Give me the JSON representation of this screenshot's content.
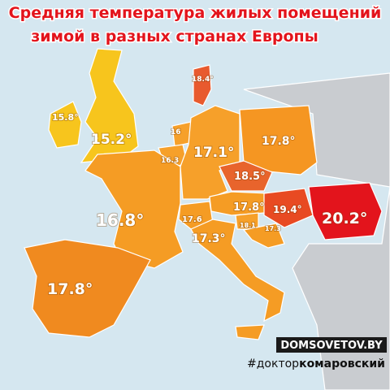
{
  "header": {
    "title_line_1": "Средняя температура жилых помещений",
    "title_line_2": "зимой в разных странах Европы"
  },
  "regions": [
    {
      "label": "15.8°"
    },
    {
      "label": "15.2°"
    },
    {
      "label": "18.4°"
    },
    {
      "label": "16"
    },
    {
      "label": "16.3"
    },
    {
      "label": "17.1°"
    },
    {
      "label": "17.8°"
    },
    {
      "label": "18.5°"
    },
    {
      "label": "16.8°"
    },
    {
      "label": "17.6"
    },
    {
      "label": "17.8°"
    },
    {
      "label": "18.1"
    },
    {
      "label": "17.3"
    },
    {
      "label": "17.3°"
    },
    {
      "label": "19.4°"
    },
    {
      "label": "20.2°"
    },
    {
      "label": "17.8°"
    }
  ],
  "footer": {
    "site": "DOMSOVETOV.BY",
    "tag_prefix": "#доктор",
    "tag_name": "комаровский"
  }
}
